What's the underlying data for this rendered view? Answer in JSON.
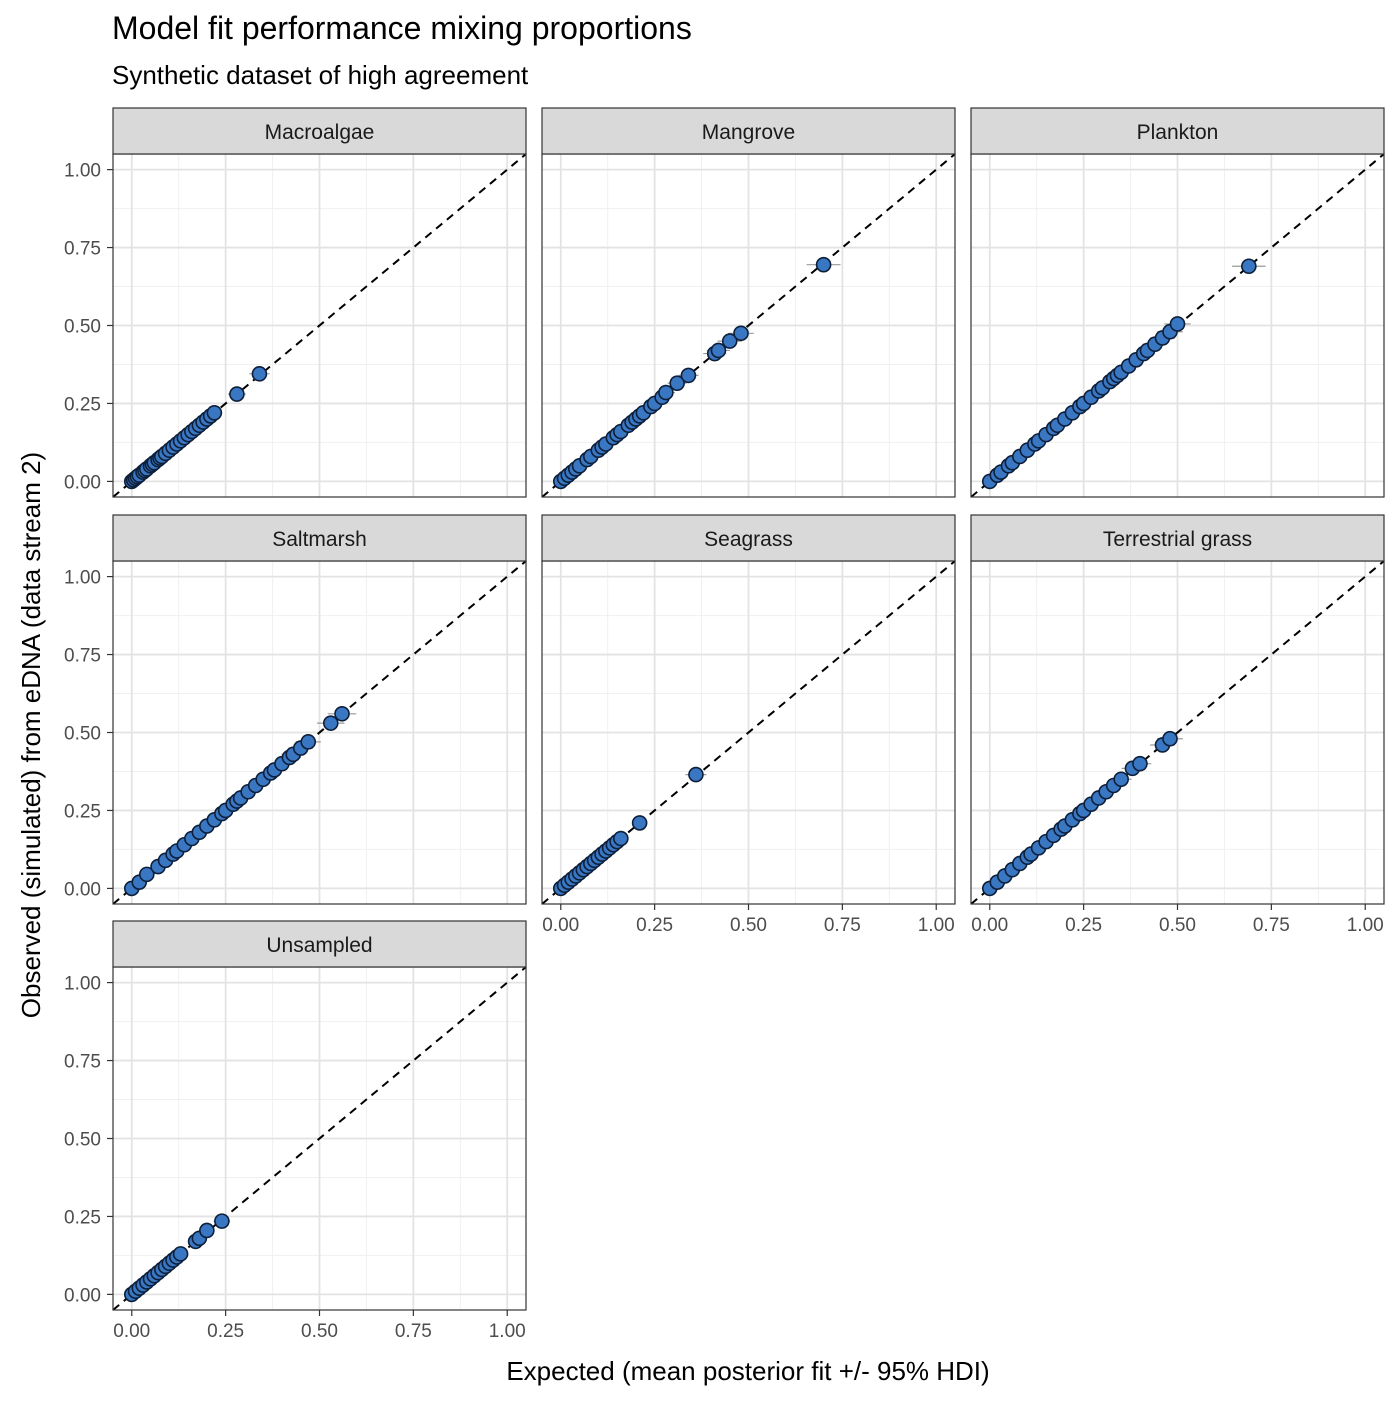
{
  "chart_data": {
    "type": "scatter",
    "title": "Model fit performance mixing proportions",
    "subtitle": "Synthetic dataset of high agreement",
    "xlabel": "Expected (mean posterior fit +/- 95% HDI)",
    "ylabel": "Observed (simulated) from eDNA (data stream 2)",
    "xlim": [
      0,
      1.0
    ],
    "ylim": [
      0,
      1.0
    ],
    "x_ticks": [
      "0.00",
      "0.25",
      "0.50",
      "0.75",
      "1.00"
    ],
    "y_ticks": [
      "0.00",
      "0.25",
      "0.50",
      "0.75",
      "1.00"
    ],
    "reference_line": "y = x (dashed)",
    "grid": true,
    "point_color": "#3a77c2",
    "point_edge": "#0d1f3a",
    "errorbar_color": "#9a9a9a",
    "strip_fill": "#d9d9d9",
    "panels": [
      {
        "name": "Macroalgae",
        "points": [
          [
            0,
            0
          ],
          [
            0.005,
            0.005
          ],
          [
            0.01,
            0.01
          ],
          [
            0.015,
            0.015
          ],
          [
            0.02,
            0.02
          ],
          [
            0.03,
            0.03
          ],
          [
            0.035,
            0.035
          ],
          [
            0.04,
            0.04
          ],
          [
            0.05,
            0.05
          ],
          [
            0.055,
            0.055
          ],
          [
            0.06,
            0.06
          ],
          [
            0.07,
            0.07
          ],
          [
            0.075,
            0.075
          ],
          [
            0.08,
            0.08
          ],
          [
            0.09,
            0.09
          ],
          [
            0.1,
            0.1
          ],
          [
            0.11,
            0.11
          ],
          [
            0.12,
            0.12
          ],
          [
            0.13,
            0.13
          ],
          [
            0.14,
            0.14
          ],
          [
            0.15,
            0.15
          ],
          [
            0.16,
            0.16
          ],
          [
            0.17,
            0.17
          ],
          [
            0.18,
            0.18
          ],
          [
            0.19,
            0.19
          ],
          [
            0.2,
            0.2
          ],
          [
            0.21,
            0.21
          ],
          [
            0.22,
            0.22
          ],
          [
            0.28,
            0.28
          ],
          [
            0.34,
            0.345
          ]
        ]
      },
      {
        "name": "Mangrove",
        "points": [
          [
            0,
            0
          ],
          [
            0.01,
            0.01
          ],
          [
            0.02,
            0.02
          ],
          [
            0.03,
            0.03
          ],
          [
            0.04,
            0.04
          ],
          [
            0.05,
            0.05
          ],
          [
            0.07,
            0.07
          ],
          [
            0.08,
            0.08
          ],
          [
            0.1,
            0.1
          ],
          [
            0.11,
            0.11
          ],
          [
            0.12,
            0.12
          ],
          [
            0.14,
            0.14
          ],
          [
            0.15,
            0.15
          ],
          [
            0.16,
            0.16
          ],
          [
            0.18,
            0.18
          ],
          [
            0.19,
            0.19
          ],
          [
            0.2,
            0.2
          ],
          [
            0.21,
            0.21
          ],
          [
            0.22,
            0.22
          ],
          [
            0.24,
            0.24
          ],
          [
            0.25,
            0.25
          ],
          [
            0.27,
            0.27
          ],
          [
            0.28,
            0.285
          ],
          [
            0.31,
            0.315
          ],
          [
            0.34,
            0.34
          ],
          [
            0.41,
            0.41
          ],
          [
            0.42,
            0.42
          ],
          [
            0.45,
            0.45
          ],
          [
            0.48,
            0.475
          ],
          [
            0.7,
            0.695
          ]
        ]
      },
      {
        "name": "Plankton",
        "points": [
          [
            0,
            0
          ],
          [
            0.02,
            0.02
          ],
          [
            0.03,
            0.03
          ],
          [
            0.05,
            0.05
          ],
          [
            0.06,
            0.06
          ],
          [
            0.08,
            0.08
          ],
          [
            0.1,
            0.1
          ],
          [
            0.12,
            0.12
          ],
          [
            0.13,
            0.13
          ],
          [
            0.15,
            0.15
          ],
          [
            0.17,
            0.17
          ],
          [
            0.18,
            0.18
          ],
          [
            0.2,
            0.2
          ],
          [
            0.22,
            0.22
          ],
          [
            0.24,
            0.24
          ],
          [
            0.25,
            0.25
          ],
          [
            0.27,
            0.27
          ],
          [
            0.29,
            0.29
          ],
          [
            0.3,
            0.3
          ],
          [
            0.32,
            0.32
          ],
          [
            0.33,
            0.33
          ],
          [
            0.34,
            0.34
          ],
          [
            0.35,
            0.35
          ],
          [
            0.37,
            0.37
          ],
          [
            0.39,
            0.39
          ],
          [
            0.41,
            0.41
          ],
          [
            0.42,
            0.42
          ],
          [
            0.44,
            0.44
          ],
          [
            0.46,
            0.46
          ],
          [
            0.48,
            0.48
          ],
          [
            0.5,
            0.505
          ],
          [
            0.69,
            0.69
          ]
        ]
      },
      {
        "name": "Saltmarsh",
        "points": [
          [
            0,
            0
          ],
          [
            0.02,
            0.02
          ],
          [
            0.04,
            0.045
          ],
          [
            0.07,
            0.07
          ],
          [
            0.09,
            0.09
          ],
          [
            0.11,
            0.11
          ],
          [
            0.12,
            0.12
          ],
          [
            0.14,
            0.14
          ],
          [
            0.16,
            0.16
          ],
          [
            0.18,
            0.18
          ],
          [
            0.2,
            0.2
          ],
          [
            0.22,
            0.22
          ],
          [
            0.24,
            0.24
          ],
          [
            0.25,
            0.25
          ],
          [
            0.27,
            0.27
          ],
          [
            0.28,
            0.28
          ],
          [
            0.29,
            0.29
          ],
          [
            0.31,
            0.31
          ],
          [
            0.33,
            0.33
          ],
          [
            0.35,
            0.35
          ],
          [
            0.37,
            0.37
          ],
          [
            0.38,
            0.38
          ],
          [
            0.4,
            0.4
          ],
          [
            0.42,
            0.42
          ],
          [
            0.43,
            0.43
          ],
          [
            0.45,
            0.45
          ],
          [
            0.47,
            0.47
          ],
          [
            0.53,
            0.53
          ],
          [
            0.56,
            0.56
          ]
        ]
      },
      {
        "name": "Seagrass",
        "points": [
          [
            0,
            0
          ],
          [
            0.01,
            0.01
          ],
          [
            0.02,
            0.02
          ],
          [
            0.03,
            0.03
          ],
          [
            0.04,
            0.04
          ],
          [
            0.05,
            0.05
          ],
          [
            0.06,
            0.06
          ],
          [
            0.07,
            0.07
          ],
          [
            0.08,
            0.08
          ],
          [
            0.09,
            0.09
          ],
          [
            0.1,
            0.1
          ],
          [
            0.11,
            0.11
          ],
          [
            0.12,
            0.12
          ],
          [
            0.13,
            0.13
          ],
          [
            0.14,
            0.14
          ],
          [
            0.15,
            0.15
          ],
          [
            0.16,
            0.16
          ],
          [
            0.21,
            0.21
          ],
          [
            0.36,
            0.365
          ]
        ]
      },
      {
        "name": "Terrestrial grass",
        "points": [
          [
            0,
            0
          ],
          [
            0.02,
            0.02
          ],
          [
            0.04,
            0.04
          ],
          [
            0.06,
            0.06
          ],
          [
            0.08,
            0.08
          ],
          [
            0.1,
            0.1
          ],
          [
            0.11,
            0.11
          ],
          [
            0.13,
            0.13
          ],
          [
            0.15,
            0.15
          ],
          [
            0.17,
            0.17
          ],
          [
            0.19,
            0.19
          ],
          [
            0.2,
            0.2
          ],
          [
            0.22,
            0.22
          ],
          [
            0.24,
            0.24
          ],
          [
            0.25,
            0.25
          ],
          [
            0.27,
            0.27
          ],
          [
            0.29,
            0.29
          ],
          [
            0.31,
            0.31
          ],
          [
            0.33,
            0.33
          ],
          [
            0.35,
            0.35
          ],
          [
            0.38,
            0.385
          ],
          [
            0.4,
            0.4
          ],
          [
            0.46,
            0.46
          ],
          [
            0.48,
            0.48
          ]
        ]
      },
      {
        "name": "Unsampled",
        "points": [
          [
            0,
            0
          ],
          [
            0.01,
            0.01
          ],
          [
            0.02,
            0.02
          ],
          [
            0.03,
            0.03
          ],
          [
            0.04,
            0.04
          ],
          [
            0.05,
            0.05
          ],
          [
            0.06,
            0.06
          ],
          [
            0.07,
            0.07
          ],
          [
            0.08,
            0.08
          ],
          [
            0.09,
            0.09
          ],
          [
            0.1,
            0.1
          ],
          [
            0.11,
            0.11
          ],
          [
            0.12,
            0.12
          ],
          [
            0.13,
            0.13
          ],
          [
            0.17,
            0.17
          ],
          [
            0.18,
            0.18
          ],
          [
            0.2,
            0.205
          ],
          [
            0.24,
            0.235
          ]
        ]
      }
    ]
  }
}
